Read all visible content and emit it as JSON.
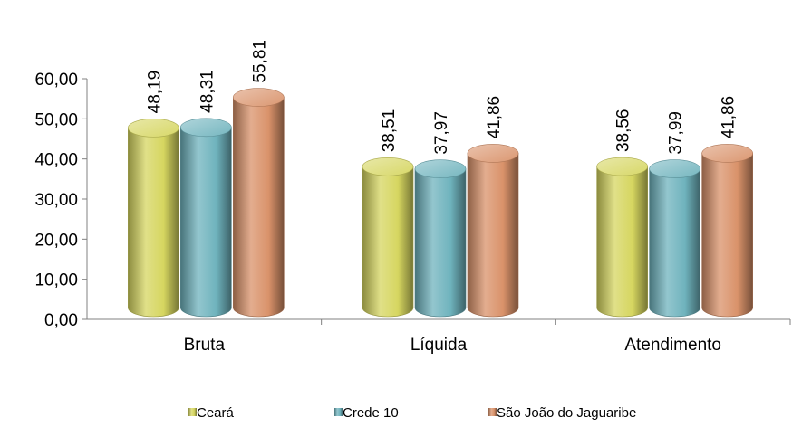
{
  "chart_data": {
    "type": "bar",
    "style": "3d-cylinder",
    "categories": [
      "Bruta",
      "Líquida",
      "Atendimento"
    ],
    "series": [
      {
        "name": "Ceará",
        "values": [
          48.19,
          38.51,
          38.56
        ],
        "value_labels": [
          "48,19",
          "38,51",
          "38,56"
        ],
        "color": "#d6d660"
      },
      {
        "name": "Crede 10",
        "values": [
          48.31,
          37.97,
          37.99
        ],
        "value_labels": [
          "48,31",
          "37,97",
          "37,99"
        ],
        "color": "#6fb3bd"
      },
      {
        "name": "São João do Jaguaribe",
        "values": [
          55.81,
          41.86,
          41.86
        ],
        "value_labels": [
          "55,81",
          "41,86",
          "41,86"
        ],
        "color": "#d9926a"
      }
    ],
    "ylim": [
      0,
      60
    ],
    "yticks": [
      0,
      10,
      20,
      30,
      40,
      50,
      60
    ],
    "ytick_labels": [
      "0,00",
      "10,00",
      "20,00",
      "30,00",
      "40,00",
      "50,00",
      "60,00"
    ],
    "grid": false,
    "legend_position": "bottom"
  }
}
